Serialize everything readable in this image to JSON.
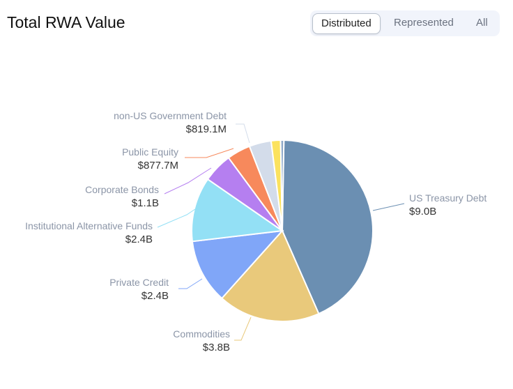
{
  "header": {
    "title": "Total RWA Value"
  },
  "tabs": [
    {
      "label": "Distributed",
      "active": true
    },
    {
      "label": "Represented",
      "active": false
    },
    {
      "label": "All",
      "active": false
    }
  ],
  "chart_data": {
    "type": "pie",
    "title": "Total RWA Value",
    "unit": "USD billions",
    "slices": [
      {
        "name": "US Treasury Debt",
        "value": 9.0,
        "label_value": "$9.0B",
        "color": "#6b8fb2"
      },
      {
        "name": "Commodities",
        "value": 3.8,
        "label_value": "$3.8B",
        "color": "#e9c97b"
      },
      {
        "name": "Private Credit",
        "value": 2.4,
        "label_value": "$2.4B",
        "color": "#80a6f8"
      },
      {
        "name": "Institutional Alternative Funds",
        "value": 2.4,
        "label_value": "$2.4B",
        "color": "#93e0f5"
      },
      {
        "name": "Corporate Bonds",
        "value": 1.1,
        "label_value": "$1.1B",
        "color": "#b57ff0"
      },
      {
        "name": "Public Equity",
        "value": 0.8777,
        "label_value": "$877.7M",
        "color": "#f7895c"
      },
      {
        "name": "non-US Government Debt",
        "value": 0.8191,
        "label_value": "$819.1M",
        "color": "#d3dcea"
      },
      {
        "name": "",
        "value": 0.35,
        "label_value": "",
        "color": "#fbe25e"
      },
      {
        "name": "",
        "value": 0.12,
        "label_value": "",
        "color": "#8fa9c8"
      }
    ]
  }
}
